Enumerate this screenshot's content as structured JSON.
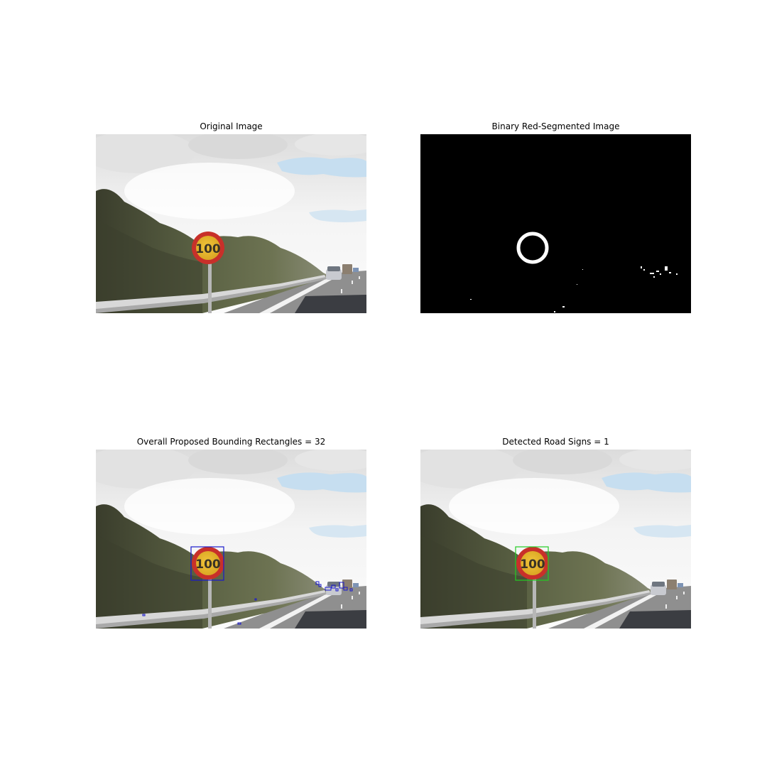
{
  "figure": {
    "panels": [
      {
        "title": "Original Image"
      },
      {
        "title": "Binary Red-Segmented Image"
      },
      {
        "title": "Overall Proposed Bounding Rectangles = 32"
      },
      {
        "title": "Detected Road Signs = 1"
      }
    ],
    "sign_text": "100",
    "colors": {
      "proposal_box": "#1a1acc",
      "detection_box": "#22cc22",
      "sign_ring": "#c8302a",
      "sign_face": "#e8b92a",
      "mask_bg": "#000000",
      "mask_fg": "#ffffff"
    }
  }
}
